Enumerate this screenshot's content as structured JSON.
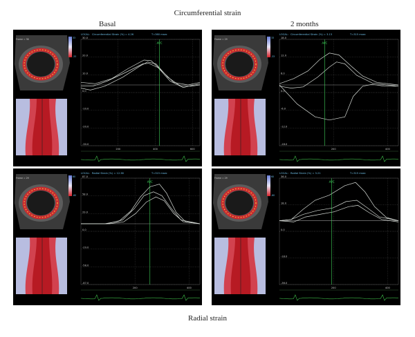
{
  "captions": {
    "top": "Circumferential strain",
    "basal": "Basal",
    "two_months": "2 months",
    "bottom": "Radial strain"
  },
  "colors": {
    "background": "#000000",
    "trace": "#d8ddd8",
    "grid": "#5a5a5a",
    "label_cyan": "#6fc0e8",
    "avc_green": "#3fd25a",
    "strain_map_red": "#d8232a",
    "strain_map_blue": "#6a7fd8"
  },
  "panels": [
    {
      "id": "tl",
      "header_local": "LOCAL",
      "header_title": "Circumferential Strain (%)",
      "header_value": "= 4.26",
      "header_time": "T=360 msec",
      "frame_label": "Frame = 36",
      "scale_top": "33",
      "scale_bottom": "-33",
      "avc_label": "AVC",
      "y_ticks": [
        "30.0",
        "20.0",
        "10.0",
        "0.0",
        "-10.0",
        "-20.0",
        "-30.0"
      ],
      "x_ticks": [
        "200",
        "400",
        "600"
      ]
    },
    {
      "id": "tr",
      "header_local": "LOCAL",
      "header_title": "Circumferential Strain (%)",
      "header_value": "= 3.13",
      "header_time": "T=315 msec",
      "frame_label": "Frame = 29",
      "scale_top": "33",
      "scale_bottom": "-33",
      "avc_label": "AVC",
      "y_ticks": [
        "18.0",
        "12.0",
        "6.0",
        "0.0",
        "-6.0",
        "-12.0",
        "-18.0"
      ],
      "x_ticks": [
        "200",
        "400"
      ]
    },
    {
      "id": "bl",
      "header_local": "LOCAL",
      "header_title": "Radial Strain (%)",
      "header_value": "= 12.38",
      "header_time": "T=315 msec",
      "frame_label": "Frame = 29",
      "scale_top": "60",
      "scale_bottom": "-60",
      "avc_label": "AVC",
      "y_ticks": [
        "87.0",
        "58.0",
        "29.0",
        "0.0",
        "-29.0",
        "-58.0",
        "-87.0"
      ],
      "x_ticks": [
        "200",
        "400"
      ]
    },
    {
      "id": "br",
      "header_local": "LOCAL",
      "header_title": "Radial Strain (%)",
      "header_value": "= 3.21",
      "header_time": "T=315 msec",
      "frame_label": "Frame = 29",
      "scale_top": "60",
      "scale_bottom": "-60",
      "avc_label": "AVC",
      "y_ticks": [
        "36.0",
        "18.0",
        "0.0",
        "-18.0",
        "-36.0"
      ],
      "x_ticks": [
        "200",
        "400"
      ]
    }
  ]
}
